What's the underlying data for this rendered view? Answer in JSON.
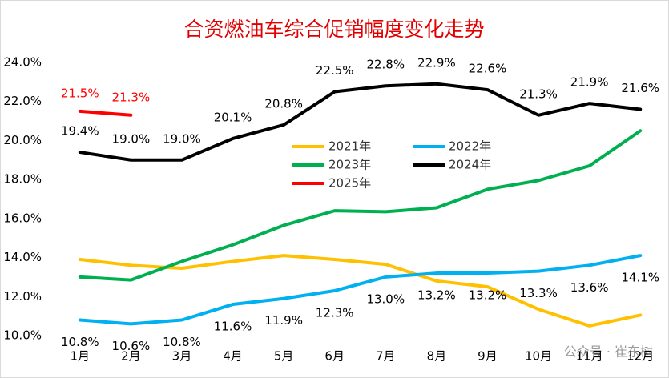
{
  "chart_data": {
    "type": "line",
    "title": "合资燃油车综合促销幅度变化走势",
    "categories": [
      "1月",
      "2月",
      "3月",
      "4月",
      "5月",
      "6月",
      "7月",
      "8月",
      "9月",
      "10月",
      "11月",
      "12月"
    ],
    "series": [
      {
        "name": "2021年",
        "color": "#ffc000",
        "values": [
          13.9,
          13.6,
          13.45,
          13.8,
          14.1,
          13.9,
          13.65,
          12.8,
          12.5,
          11.35,
          10.5,
          11.05
        ]
      },
      {
        "name": "2022年",
        "color": "#00b0f0",
        "values": [
          10.8,
          10.6,
          10.8,
          11.6,
          11.9,
          12.3,
          13.0,
          13.2,
          13.2,
          13.3,
          13.6,
          14.1
        ],
        "value_labels": [
          "10.8%",
          "10.6%",
          "10.8%",
          "11.6%",
          "11.9%",
          "12.3%",
          "13.0%",
          "13.2%",
          "13.2%",
          "13.3%",
          "13.6%",
          "14.1%"
        ]
      },
      {
        "name": "2023年",
        "color": "#00b050",
        "values": [
          13.0,
          12.85,
          13.8,
          14.65,
          15.65,
          16.4,
          16.35,
          16.55,
          17.5,
          17.95,
          18.7,
          20.5
        ]
      },
      {
        "name": "2024年",
        "color": "#000000",
        "values": [
          19.4,
          19.0,
          19.0,
          20.1,
          20.8,
          22.5,
          22.8,
          22.9,
          22.6,
          21.3,
          21.9,
          21.6
        ],
        "value_labels": [
          "19.4%",
          "19.0%",
          "19.0%",
          "20.1%",
          "20.8%",
          "22.5%",
          "22.8%",
          "22.9%",
          "22.6%",
          "21.3%",
          "21.9%",
          "21.6%"
        ]
      },
      {
        "name": "2025年",
        "color": "#ff0000",
        "values": [
          21.5,
          21.3,
          null,
          null,
          null,
          null,
          null,
          null,
          null,
          null,
          null,
          null
        ],
        "value_labels": [
          "21.5%",
          "21.3%",
          null,
          null,
          null,
          null,
          null,
          null,
          null,
          null,
          null,
          null
        ]
      }
    ],
    "ylim": [
      10,
      24
    ],
    "yticks": [
      {
        "value": 10,
        "label": "10.0%"
      },
      {
        "value": 12,
        "label": "12.0%"
      },
      {
        "value": 14,
        "label": "14.0%"
      },
      {
        "value": 16,
        "label": "16.0%"
      },
      {
        "value": 18,
        "label": "18.0%"
      },
      {
        "value": 20,
        "label": "20.0%"
      },
      {
        "value": 22,
        "label": "22.0%"
      },
      {
        "value": 24,
        "label": "24.0%"
      }
    ],
    "grid": false,
    "legend": "center",
    "watermark": "公众号 · 崔东树"
  }
}
